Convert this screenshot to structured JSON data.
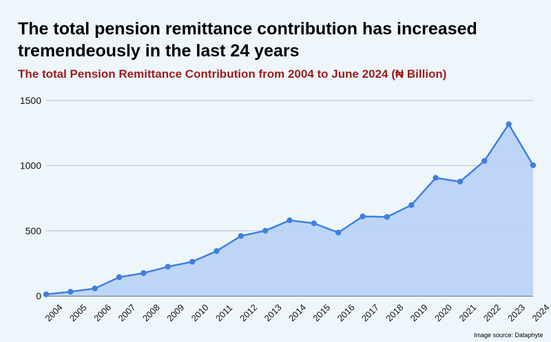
{
  "chart_data": {
    "type": "area",
    "title": "The total pension remittance contribution has increased tremendeously in the last 24 years",
    "subtitle": "The total Pension Remittance Contribution from 2004 to June 2024 (₦ Billion)",
    "xlabel": "",
    "ylabel": "",
    "ylim": [
      0,
      1500
    ],
    "yticks": [
      "0",
      "500",
      "1000",
      "1500"
    ],
    "categories": [
      "2004",
      "2005",
      "2006",
      "2007",
      "2008",
      "2009",
      "2010",
      "2011",
      "2012",
      "2013",
      "2014",
      "2015",
      "2016",
      "2017",
      "2018",
      "2019",
      "2020",
      "2021",
      "2022",
      "2023",
      "2024"
    ],
    "series": [
      {
        "name": "Total Pension Remittance Contribution (₦ Billion)",
        "values": [
          12,
          32,
          57,
          144,
          175,
          224,
          262,
          344,
          460,
          500,
          580,
          557,
          486,
          610,
          606,
          697,
          906,
          877,
          1036,
          1318,
          1003
        ]
      }
    ],
    "grid": true,
    "colors": {
      "line": "#3f7fdf",
      "fill": "#b7d3f7",
      "grid": "#bfbfbf",
      "subtitle": "#9b1c1c"
    }
  },
  "credit": "Image source: Dataphyte"
}
